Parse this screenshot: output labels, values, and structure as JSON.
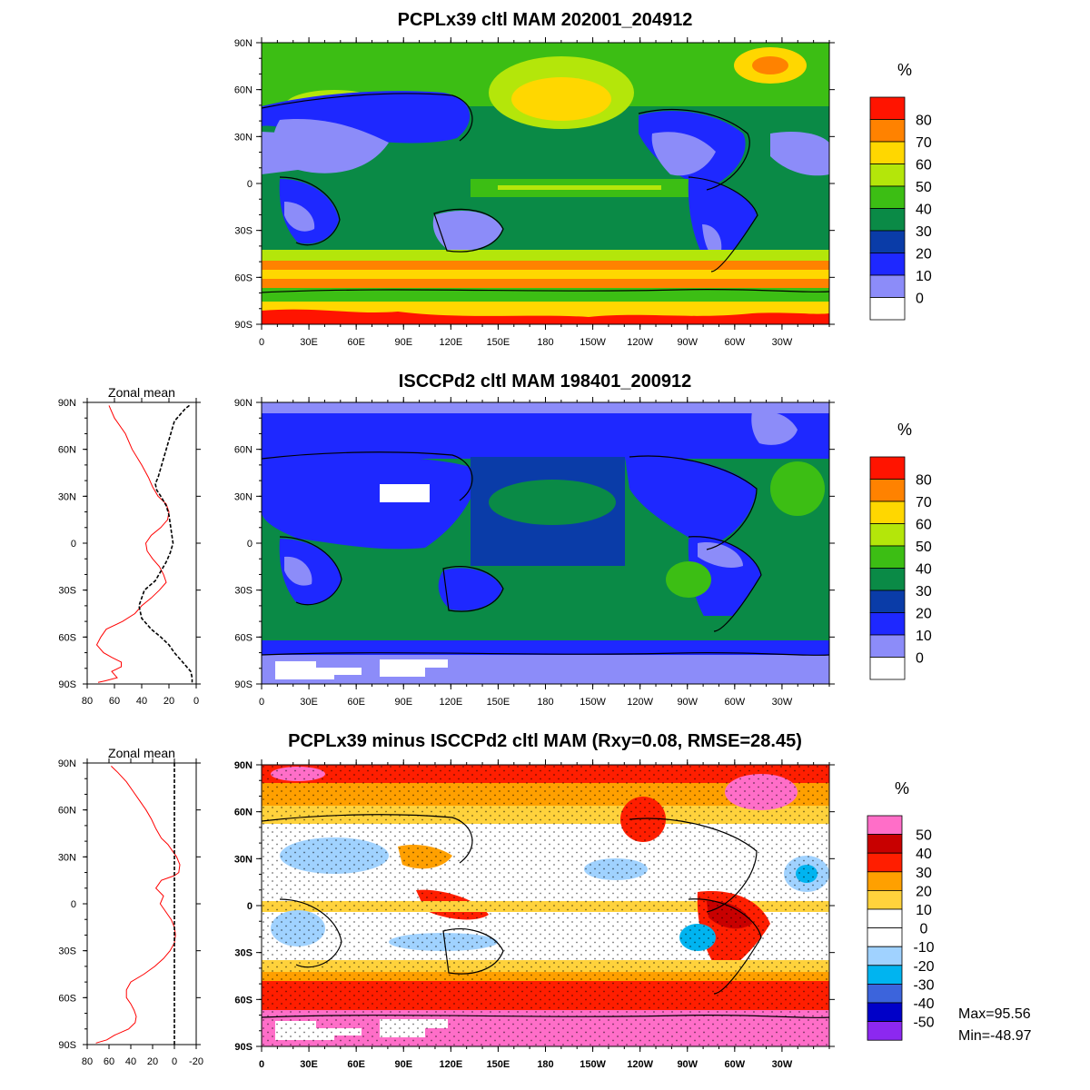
{
  "chart_data": [
    {
      "type": "heatmap",
      "panel": "top",
      "title": "PCPLx39 cltl MAM 202001_204912",
      "lat_ticks": [
        "90N",
        "60N",
        "30N",
        "0",
        "30S",
        "60S",
        "90S"
      ],
      "lon_ticks": [
        "0",
        "30E",
        "60E",
        "90E",
        "120E",
        "150E",
        "180",
        "150W",
        "120W",
        "90W",
        "60W",
        "30W"
      ],
      "colorbar": {
        "unit": "%",
        "levels": [
          "0",
          "10",
          "20",
          "30",
          "40",
          "50",
          "60",
          "70",
          "80"
        ],
        "colors": [
          "#ffffff",
          "#8c8cf9",
          "#1e28ff",
          "#0a3ca8",
          "#0a8a46",
          "#3cbe14",
          "#b4e60a",
          "#ffd700",
          "#ff8200",
          "#ff1400"
        ]
      }
    },
    {
      "type": "heatmap",
      "panel": "middle",
      "title": "ISCCPd2 cltl MAM 198401_200912",
      "lat_ticks": [
        "90N",
        "60N",
        "30N",
        "0",
        "30S",
        "60S",
        "90S"
      ],
      "lon_ticks": [
        "0",
        "30E",
        "60E",
        "90E",
        "120E",
        "150E",
        "180",
        "150W",
        "120W",
        "90W",
        "60W",
        "30W"
      ],
      "colorbar": {
        "unit": "%",
        "levels": [
          "0",
          "10",
          "20",
          "30",
          "40",
          "50",
          "60",
          "70",
          "80"
        ],
        "colors": [
          "#ffffff",
          "#8c8cf9",
          "#1e28ff",
          "#0a3ca8",
          "#0a8a46",
          "#3cbe14",
          "#b4e60a",
          "#ffd700",
          "#ff8200",
          "#ff1400"
        ]
      }
    },
    {
      "type": "heatmap",
      "panel": "bottom",
      "title": "PCPLx39 minus ISCCPd2 cltl MAM (Rxy=0.08, RMSE=28.45)",
      "lat_ticks": [
        "90N",
        "60N",
        "30N",
        "0",
        "30S",
        "60S",
        "90S"
      ],
      "lon_ticks": [
        "0",
        "30E",
        "60E",
        "90E",
        "120E",
        "150E",
        "180",
        "150W",
        "120W",
        "90W",
        "60W",
        "30W"
      ],
      "colorbar": {
        "unit": "%",
        "levels": [
          "50",
          "40",
          "30",
          "20",
          "10",
          "0",
          "-10",
          "-20",
          "-30",
          "-40",
          "-50"
        ],
        "colors": [
          "#ff6ec8",
          "#c80000",
          "#ff1e00",
          "#ffa000",
          "#ffd23c",
          "#ffffff",
          "#ffffff",
          "#a0d2ff",
          "#00b4f0",
          "#3c64dc",
          "#0000c8",
          "#8c28f0"
        ]
      },
      "stats": {
        "max": "Max=95.56",
        "min": "Min=-48.97"
      }
    },
    {
      "type": "line",
      "panel": "zonal-mean-middle",
      "title": "Zonal mean",
      "x_ticks": [
        "80",
        "60",
        "40",
        "20",
        "0"
      ],
      "y_ticks": [
        "90N",
        "60N",
        "30N",
        "0",
        "30S",
        "60S",
        "90S"
      ],
      "xlim": [
        80,
        0
      ],
      "ylim": [
        -90,
        90
      ],
      "series": [
        {
          "color": "#ff0000",
          "style": "solid",
          "x": [
            64,
            60,
            52,
            47,
            40,
            35,
            32,
            28,
            22,
            20,
            21,
            26,
            33,
            37,
            36,
            32,
            27,
            24,
            22,
            27,
            33,
            40,
            45,
            54,
            66,
            70,
            73,
            68,
            62,
            55,
            55,
            62,
            60,
            58,
            67,
            72
          ],
          "y": [
            88,
            80,
            70,
            60,
            50,
            42,
            36,
            30,
            25,
            20,
            15,
            10,
            5,
            0,
            -5,
            -10,
            -15,
            -20,
            -25,
            -30,
            -35,
            -40,
            -45,
            -50,
            -55,
            -60,
            -65,
            -70,
            -73,
            -76,
            -79,
            -82,
            -84,
            -86,
            -88,
            -89
          ]
        },
        {
          "color": "#000000",
          "style": "dashed",
          "x": [
            5,
            8,
            12,
            16,
            18,
            20,
            22,
            24,
            26,
            28,
            30,
            29,
            26,
            22,
            20,
            19,
            18,
            17,
            19,
            22,
            26,
            30,
            38,
            42,
            40,
            33,
            26,
            20,
            16,
            12,
            8,
            4,
            3,
            3
          ],
          "y": [
            88,
            86,
            82,
            78,
            72,
            66,
            60,
            54,
            48,
            42,
            38,
            34,
            30,
            24,
            18,
            12,
            6,
            0,
            -6,
            -12,
            -18,
            -24,
            -30,
            -40,
            -48,
            -55,
            -60,
            -65,
            -70,
            -74,
            -78,
            -82,
            -86,
            -89
          ]
        }
      ]
    },
    {
      "type": "line",
      "panel": "zonal-mean-bottom",
      "title": "Zonal mean",
      "x_ticks": [
        "80",
        "60",
        "40",
        "20",
        "0",
        "-20"
      ],
      "y_ticks": [
        "90N",
        "60N",
        "30N",
        "0",
        "30S",
        "60S",
        "90S"
      ],
      "xlim": [
        80,
        -20
      ],
      "ylim": [
        -90,
        90
      ],
      "series": [
        {
          "color": "#ff0000",
          "style": "solid",
          "x": [
            58,
            52,
            44,
            38,
            32,
            26,
            21,
            17,
            12,
            6,
            2,
            -2,
            -5,
            -4,
            0,
            12,
            17,
            10,
            13,
            8,
            3,
            0,
            -1,
            0,
            4,
            10,
            18,
            28,
            40,
            44,
            44,
            40,
            37,
            35,
            36,
            42,
            55,
            62,
            72
          ],
          "y": [
            88,
            84,
            78,
            72,
            66,
            60,
            54,
            48,
            42,
            38,
            34,
            30,
            25,
            20,
            18,
            15,
            10,
            5,
            0,
            -5,
            -10,
            -15,
            -20,
            -25,
            -30,
            -35,
            -40,
            -45,
            -50,
            -55,
            -60,
            -64,
            -68,
            -72,
            -76,
            -80,
            -84,
            -87,
            -89
          ]
        },
        {
          "color": "#000000",
          "style": "dashed",
          "x": [
            0,
            0
          ],
          "y": [
            90,
            -90
          ]
        }
      ]
    }
  ],
  "labels": {
    "zonal_mean": "Zonal mean"
  }
}
